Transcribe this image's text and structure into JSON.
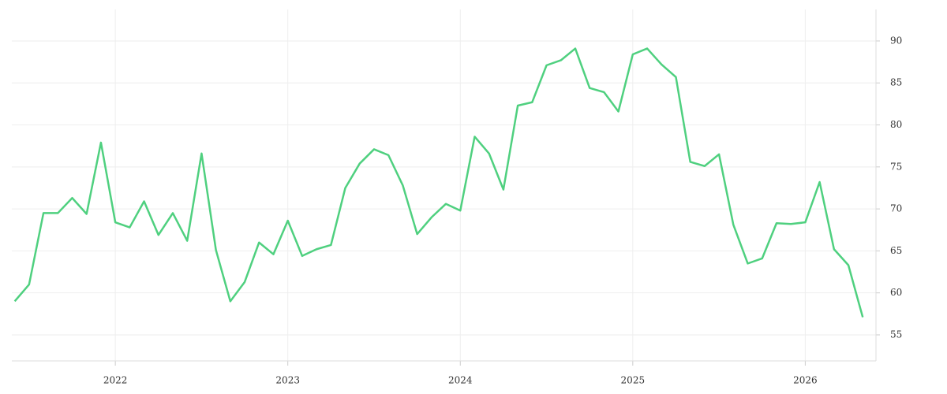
{
  "chart_data": {
    "type": "line",
    "x": [
      "2021-06",
      "2021-07",
      "2021-08",
      "2021-09",
      "2021-10",
      "2021-11",
      "2021-12",
      "2022-01",
      "2022-02",
      "2022-03",
      "2022-04",
      "2022-05",
      "2022-06",
      "2022-07",
      "2022-08",
      "2022-09",
      "2022-10",
      "2022-11",
      "2022-12",
      "2023-01",
      "2023-02",
      "2023-03",
      "2023-04",
      "2023-05",
      "2023-06",
      "2023-07",
      "2023-08",
      "2023-09",
      "2023-10",
      "2023-11",
      "2023-12",
      "2024-01",
      "2024-02",
      "2024-03",
      "2024-04",
      "2024-05",
      "2024-06",
      "2024-07",
      "2024-08",
      "2024-09",
      "2024-10",
      "2024-11",
      "2024-12",
      "2025-01",
      "2025-02",
      "2025-03",
      "2025-04",
      "2025-05",
      "2025-06",
      "2025-07",
      "2025-08",
      "2025-09",
      "2025-10",
      "2025-11",
      "2025-12",
      "2026-01",
      "2026-02",
      "2026-03",
      "2026-04",
      "2026-05"
    ],
    "series": [
      {
        "color": "#4fd07f",
        "values": [
          59.0,
          61.0,
          69.5,
          69.5,
          71.3,
          69.4,
          77.9,
          68.4,
          67.8,
          70.9,
          66.9,
          69.5,
          66.2,
          76.6,
          65.1,
          59.0,
          61.3,
          66.0,
          64.6,
          68.6,
          64.4,
          65.2,
          65.7,
          72.5,
          75.4,
          77.1,
          76.4,
          72.8,
          67.0,
          69.0,
          70.6,
          69.8,
          78.6,
          76.6,
          72.3,
          82.3,
          82.7,
          87.1,
          87.7,
          89.1,
          84.4,
          83.9,
          81.6,
          88.4,
          89.1,
          87.2,
          85.7,
          75.6,
          75.1,
          76.5,
          68.1,
          63.5,
          64.1,
          68.3,
          68.2,
          68.4,
          73.2,
          65.2,
          63.3,
          57.1
        ]
      }
    ],
    "xlim": [
      2021.4,
      2026.41
    ],
    "xticks": [
      2022,
      2023,
      2024,
      2025,
      2026
    ],
    "ylim": [
      51.9,
      93.75
    ],
    "yticks": [
      55,
      60,
      65,
      70,
      75,
      80,
      85,
      90
    ],
    "grid": true
  }
}
